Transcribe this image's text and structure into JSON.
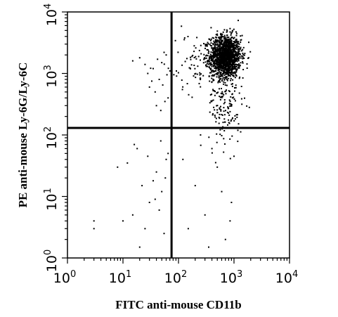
{
  "chart_data": {
    "type": "scatter",
    "title": "",
    "xlabel": "FITC anti-mouse CD11b",
    "ylabel": "PE anti-mouse Ly-6G/Ly-6C",
    "x_scale": "log",
    "y_scale": "log",
    "xlim": [
      1,
      10000
    ],
    "ylim": [
      1,
      10000
    ],
    "x_ticks": [
      {
        "base": "10",
        "exp": "0"
      },
      {
        "base": "10",
        "exp": "1"
      },
      {
        "base": "10",
        "exp": "2"
      },
      {
        "base": "10",
        "exp": "3"
      },
      {
        "base": "10",
        "exp": "4"
      }
    ],
    "y_ticks": [
      {
        "base": "10",
        "exp": "0"
      },
      {
        "base": "10",
        "exp": "1"
      },
      {
        "base": "10",
        "exp": "2"
      },
      {
        "base": "10",
        "exp": "3"
      },
      {
        "base": "10",
        "exp": "4"
      }
    ],
    "gates": {
      "x": 75,
      "y": 130
    },
    "grid": false,
    "point_color": "#000000",
    "clusters": [
      {
        "name": "main",
        "cx": 700,
        "cy": 1900,
        "sx": 0.14,
        "sy": 0.17,
        "n": 1500
      },
      {
        "name": "tail",
        "cx": 700,
        "cy": 300,
        "sx": 0.15,
        "sy": 0.35,
        "n": 160
      },
      {
        "name": "bleed-left",
        "cx": 250,
        "cy": 1400,
        "sx": 0.3,
        "sy": 0.25,
        "n": 100
      }
    ],
    "points": [
      [
        50,
        1500
      ],
      [
        45,
        800
      ],
      [
        60,
        2000
      ],
      [
        40,
        300
      ],
      [
        35,
        1200
      ],
      [
        25,
        1400
      ],
      [
        55,
        2200
      ],
      [
        30,
        600
      ],
      [
        20,
        1800
      ],
      [
        65,
        400
      ],
      [
        70,
        1100
      ],
      [
        15,
        1600
      ],
      [
        48,
        250
      ],
      [
        38,
        500
      ],
      [
        62,
        950
      ],
      [
        28,
        1000
      ],
      [
        52,
        650
      ],
      [
        42,
        1700
      ],
      [
        57,
        350
      ],
      [
        33,
        750
      ],
      [
        12,
        35
      ],
      [
        18,
        60
      ],
      [
        22,
        15
      ],
      [
        30,
        8
      ],
      [
        40,
        25
      ],
      [
        50,
        12
      ],
      [
        60,
        40
      ],
      [
        15,
        5
      ],
      [
        25,
        3
      ],
      [
        35,
        18
      ],
      [
        45,
        6
      ],
      [
        55,
        2.5
      ],
      [
        65,
        50
      ],
      [
        20,
        1.5
      ],
      [
        10,
        4
      ],
      [
        8,
        30
      ],
      [
        3,
        4
      ],
      [
        3,
        3
      ],
      [
        48,
        80
      ],
      [
        58,
        20
      ],
      [
        28,
        45
      ],
      [
        38,
        9
      ],
      [
        16,
        70
      ],
      [
        120,
        40
      ],
      [
        200,
        15
      ],
      [
        300,
        5
      ],
      [
        500,
        30
      ],
      [
        900,
        8
      ],
      [
        700,
        2
      ],
      [
        400,
        60
      ],
      [
        250,
        100
      ],
      [
        600,
        12
      ],
      [
        850,
        4
      ],
      [
        150,
        3
      ],
      [
        1000,
        45
      ],
      [
        350,
        1.5
      ]
    ]
  }
}
